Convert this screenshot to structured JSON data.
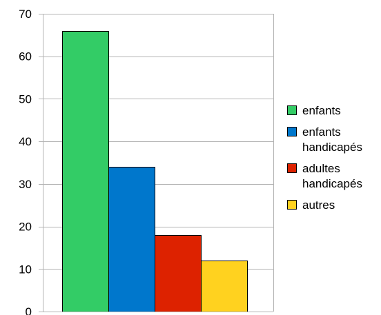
{
  "chart_data": {
    "type": "bar",
    "title": "",
    "xlabel": "",
    "ylabel": "",
    "ylim": [
      0,
      70
    ],
    "yticks": [
      0,
      10,
      20,
      30,
      40,
      50,
      60,
      70
    ],
    "grid": true,
    "legend_position": "right",
    "series": [
      {
        "name": "enfants",
        "legend_lines": [
          "enfants"
        ],
        "value": 66,
        "color": "#33cc66"
      },
      {
        "name": "enfants handicapés",
        "legend_lines": [
          "enfants",
          "handicapés"
        ],
        "value": 34,
        "color": "#0077cc"
      },
      {
        "name": "adultes handicapés",
        "legend_lines": [
          "adultes",
          "handicapés"
        ],
        "value": 18,
        "color": "#dd2200"
      },
      {
        "name": "autres",
        "legend_lines": [
          "autres"
        ],
        "value": 12,
        "color": "#ffd21f"
      }
    ]
  }
}
